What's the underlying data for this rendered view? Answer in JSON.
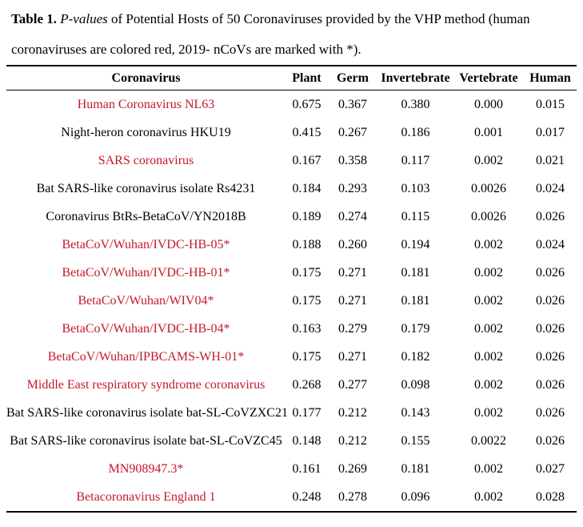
{
  "caption": {
    "label": "Table 1.",
    "italic_term": "P-values",
    "text": "of Potential Hosts of 50 Coronaviruses provided by the VHP method (human coronaviruses are colored red, 2019- nCoVs are marked with *)."
  },
  "colors": {
    "highlight_red": "#c2182b",
    "text_black": "#000000",
    "rule_black": "#000000"
  },
  "table": {
    "columns": [
      "Coronavirus",
      "Plant",
      "Germ",
      "Invertebrate",
      "Vertebrate",
      "Human"
    ],
    "rows": [
      {
        "name": "Human Coronavirus NL63",
        "red": true,
        "values": [
          "0.675",
          "0.367",
          "0.380",
          "0.000",
          "0.015"
        ]
      },
      {
        "name": "Night-heron coronavirus HKU19",
        "red": false,
        "values": [
          "0.415",
          "0.267",
          "0.186",
          "0.001",
          "0.017"
        ]
      },
      {
        "name": "SARS coronavirus",
        "red": true,
        "values": [
          "0.167",
          "0.358",
          "0.117",
          "0.002",
          "0.021"
        ]
      },
      {
        "name": "Bat SARS-like coronavirus isolate Rs4231",
        "red": false,
        "values": [
          "0.184",
          "0.293",
          "0.103",
          "0.0026",
          "0.024"
        ]
      },
      {
        "name": "Coronavirus BtRs-BetaCoV/YN2018B",
        "red": false,
        "values": [
          "0.189",
          "0.274",
          "0.115",
          "0.0026",
          "0.026"
        ]
      },
      {
        "name": "BetaCoV/Wuhan/IVDC-HB-05*",
        "red": true,
        "values": [
          "0.188",
          "0.260",
          "0.194",
          "0.002",
          "0.024"
        ]
      },
      {
        "name": "BetaCoV/Wuhan/IVDC-HB-01*",
        "red": true,
        "values": [
          "0.175",
          "0.271",
          "0.181",
          "0.002",
          "0.026"
        ]
      },
      {
        "name": "BetaCoV/Wuhan/WIV04*",
        "red": true,
        "values": [
          "0.175",
          "0.271",
          "0.181",
          "0.002",
          "0.026"
        ]
      },
      {
        "name": "BetaCoV/Wuhan/IVDC-HB-04*",
        "red": true,
        "values": [
          "0.163",
          "0.279",
          "0.179",
          "0.002",
          "0.026"
        ]
      },
      {
        "name": "BetaCoV/Wuhan/IPBCAMS-WH-01*",
        "red": true,
        "values": [
          "0.175",
          "0.271",
          "0.182",
          "0.002",
          "0.026"
        ]
      },
      {
        "name": "Middle East respiratory syndrome coronavirus",
        "red": true,
        "values": [
          "0.268",
          "0.277",
          "0.098",
          "0.002",
          "0.026"
        ]
      },
      {
        "name": "Bat SARS-like coronavirus isolate bat-SL-CoVZXC21",
        "red": false,
        "values": [
          "0.177",
          "0.212",
          "0.143",
          "0.002",
          "0.026"
        ]
      },
      {
        "name": "Bat SARS-like coronavirus isolate bat-SL-CoVZC45",
        "red": false,
        "values": [
          "0.148",
          "0.212",
          "0.155",
          "0.0022",
          "0.026"
        ]
      },
      {
        "name": "MN908947.3*",
        "red": true,
        "values": [
          "0.161",
          "0.269",
          "0.181",
          "0.002",
          "0.027"
        ]
      },
      {
        "name": "Betacoronavirus England 1",
        "red": true,
        "values": [
          "0.248",
          "0.278",
          "0.096",
          "0.002",
          "0.028"
        ]
      }
    ]
  }
}
